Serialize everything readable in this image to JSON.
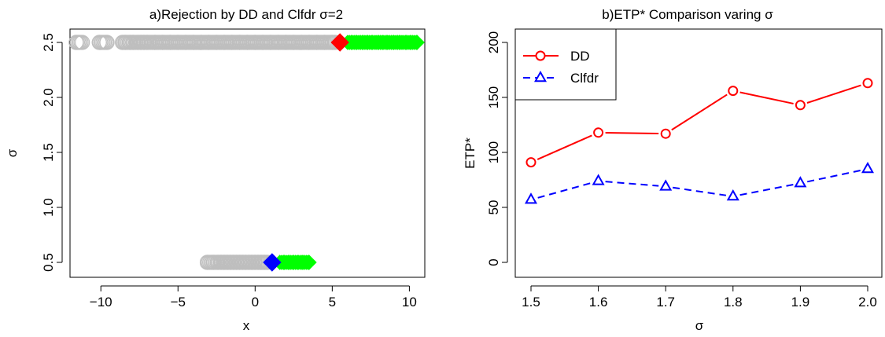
{
  "chart_data": [
    {
      "type": "scatter",
      "title": "a)Rejection by DD and Clfdr σ=2",
      "xlabel": "x",
      "ylabel": "σ",
      "xlim": [
        -12,
        11
      ],
      "ylim": [
        0.5,
        2.5
      ],
      "xticks": [
        -10,
        -5,
        0,
        5,
        10
      ],
      "xtick_labels": [
        "−10",
        "−5",
        "0",
        "5",
        "10"
      ],
      "yticks": [
        0.5,
        1.0,
        1.5,
        2.0,
        2.5
      ],
      "ytick_labels": [
        "0.5",
        "1.0",
        "1.5",
        "2.0",
        "2.5"
      ],
      "grid": false,
      "colors": {
        "not_rejected": "#bebebe",
        "rejected_dd_only": "#00ff00",
        "threshold_dd": "#ff0000",
        "threshold_clfdr": "#0000ff"
      },
      "series": [
        {
          "sigma": 2.5,
          "not_rejected_x": [
            -11.6,
            -11.2,
            -10.1,
            -9.6,
            -8.6,
            -8.4,
            -8.1,
            -7.9,
            -7.6,
            -7.4,
            -7.2,
            -7.0,
            -6.5,
            -6.0,
            -5.5,
            -5.0,
            -4.5,
            -4.0,
            -3.5,
            -3.0,
            -2.5,
            -2.0,
            -1.5,
            -1.0,
            -0.5,
            0.0,
            0.5,
            1.0,
            1.5,
            2.0,
            2.5,
            3.0,
            3.5,
            4.0,
            4.5,
            5.0,
            5.2
          ],
          "threshold_x": 5.5,
          "rejected_x": [
            6.0,
            6.3,
            6.6,
            7.0,
            7.3,
            7.6,
            8.0,
            8.3,
            8.6,
            9.0,
            9.4,
            9.8,
            10.1,
            10.5
          ]
        },
        {
          "sigma": 0.5,
          "not_rejected_x": [
            -3.1,
            -2.7,
            -2.4,
            -2.2,
            -2.0,
            -1.8,
            -1.6,
            -1.4,
            -1.2,
            -1.0,
            -0.8,
            -0.6,
            -0.4,
            -0.2,
            0.0,
            0.2,
            0.4,
            0.6,
            0.8
          ],
          "threshold_x": 1.1,
          "rejected_x": [
            1.6,
            1.9,
            2.2,
            2.5,
            2.8,
            3.1,
            3.5
          ]
        }
      ]
    },
    {
      "type": "line",
      "title": "b)ETP* Comparison varing σ",
      "xlabel": "σ",
      "ylabel": "ETP*",
      "x": [
        1.5,
        1.6,
        1.7,
        1.8,
        1.9,
        2.0
      ],
      "xlim": [
        1.5,
        2.0
      ],
      "ylim": [
        0,
        200
      ],
      "xticks": [
        1.5,
        1.6,
        1.7,
        1.8,
        1.9,
        2.0
      ],
      "xtick_labels": [
        "1.5",
        "1.6",
        "1.7",
        "1.8",
        "1.9",
        "2.0"
      ],
      "yticks": [
        0,
        50,
        100,
        150,
        200
      ],
      "ytick_labels": [
        "0",
        "50",
        "100",
        "150",
        "200"
      ],
      "grid": false,
      "legend": "top-left",
      "series": [
        {
          "name": "DD",
          "values": [
            91,
            118,
            117,
            156,
            143,
            163
          ],
          "color": "#ff0000",
          "marker": "circle",
          "line": "solid"
        },
        {
          "name": "Clfdr",
          "values": [
            57,
            74,
            69,
            60,
            72,
            85
          ],
          "color": "#0000ff",
          "marker": "triangle",
          "line": "dashed"
        }
      ]
    }
  ]
}
